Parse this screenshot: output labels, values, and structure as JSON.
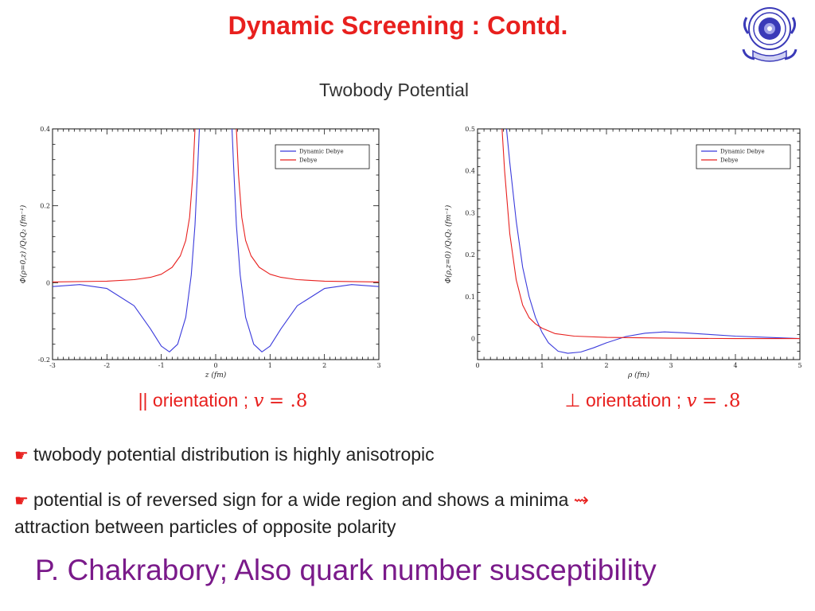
{
  "title": "Dynamic Screening : Contd.",
  "subtitle": "Twobody Potential",
  "logo": {
    "icon": "university-seal-icon",
    "color": "#3a3ab8"
  },
  "colors": {
    "title": "#e8201e",
    "dynamic": "#3b3bdc",
    "debye": "#e8201e",
    "footer": "#7a1a8a"
  },
  "chart_data": [
    {
      "type": "line",
      "ylabel": "Φ(ρ=0,z) /Q₁Q₂ (fm⁻¹)",
      "xlabel": "z (fm)",
      "xlim": [
        -3,
        3
      ],
      "ylim": [
        -0.2,
        0.4
      ],
      "xticks": [
        -3,
        -2,
        -1,
        0,
        1,
        2,
        3
      ],
      "yticks": [
        -0.2,
        0,
        0.2,
        0.4
      ],
      "ytick_labels": [
        "-0.2",
        "0",
        "0.2",
        "0.4"
      ],
      "legend_position": "top-right",
      "series": [
        {
          "name": "Dynamic Debye",
          "color": "#3b3bdc",
          "x": [
            -3,
            -2.5,
            -2,
            -1.5,
            -1.2,
            -1,
            -0.85,
            -0.7,
            -0.55,
            -0.45,
            -0.38,
            -0.33,
            -0.3
          ],
          "y": [
            -0.01,
            -0.005,
            -0.015,
            -0.06,
            -0.12,
            -0.165,
            -0.18,
            -0.16,
            -0.09,
            0.02,
            0.15,
            0.3,
            0.4
          ]
        },
        {
          "name": "Dynamic Debye",
          "color": "#3b3bdc",
          "x": [
            0.3,
            0.33,
            0.38,
            0.45,
            0.55,
            0.7,
            0.85,
            1,
            1.2,
            1.5,
            2,
            2.5,
            3
          ],
          "y": [
            0.4,
            0.3,
            0.15,
            0.02,
            -0.09,
            -0.16,
            -0.18,
            -0.165,
            -0.12,
            -0.06,
            -0.015,
            -0.005,
            -0.01
          ]
        },
        {
          "name": "Debye",
          "color": "#e8201e",
          "x": [
            -3,
            -2,
            -1.5,
            -1.2,
            -1,
            -0.8,
            -0.65,
            -0.55,
            -0.48,
            -0.42,
            -0.38
          ],
          "y": [
            0.002,
            0.004,
            0.008,
            0.014,
            0.022,
            0.04,
            0.07,
            0.11,
            0.17,
            0.28,
            0.4
          ]
        },
        {
          "name": "Debye",
          "color": "#e8201e",
          "x": [
            0.38,
            0.42,
            0.48,
            0.55,
            0.65,
            0.8,
            1,
            1.2,
            1.5,
            2,
            3
          ],
          "y": [
            0.4,
            0.28,
            0.17,
            0.11,
            0.07,
            0.04,
            0.022,
            0.014,
            0.008,
            0.004,
            0.002
          ]
        }
      ]
    },
    {
      "type": "line",
      "ylabel": "Φ(ρ,z=0) /Q₁Q₂ (fm⁻¹)",
      "xlabel": "ρ (fm)",
      "xlim": [
        0,
        5
      ],
      "ylim": [
        -0.05,
        0.5
      ],
      "xticks": [
        0,
        1,
        2,
        3,
        4,
        5
      ],
      "yticks": [
        0,
        0.1,
        0.2,
        0.3,
        0.4,
        0.5
      ],
      "ytick_labels": [
        "0",
        "0.1",
        "0.2",
        "0.3",
        "0.4",
        "0.5"
      ],
      "legend_position": "top-right",
      "series": [
        {
          "name": "Dynamic Debye",
          "color": "#3b3bdc",
          "x": [
            0.45,
            0.5,
            0.6,
            0.7,
            0.8,
            0.9,
            1,
            1.1,
            1.25,
            1.4,
            1.6,
            1.8,
            2,
            2.3,
            2.6,
            2.9,
            3.2,
            3.6,
            4,
            4.5,
            5
          ],
          "y": [
            0.5,
            0.42,
            0.28,
            0.17,
            0.1,
            0.05,
            0.015,
            -0.01,
            -0.03,
            -0.035,
            -0.032,
            -0.022,
            -0.01,
            0.005,
            0.013,
            0.016,
            0.014,
            0.01,
            0.006,
            0.003,
            0.0
          ]
        },
        {
          "name": "Debye",
          "color": "#e8201e",
          "x": [
            0.38,
            0.42,
            0.5,
            0.6,
            0.7,
            0.8,
            0.9,
            1,
            1.2,
            1.5,
            2,
            3,
            4,
            5
          ],
          "y": [
            0.5,
            0.4,
            0.25,
            0.14,
            0.08,
            0.05,
            0.035,
            0.025,
            0.012,
            0.006,
            0.003,
            0.001,
            0.0,
            0.0
          ]
        }
      ]
    }
  ],
  "captions": {
    "left": {
      "prefix": "|| orientation ;",
      "var": "v",
      "equals": "= .8"
    },
    "right": {
      "prefix": "⊥ orientation ;",
      "var": "v",
      "equals": "= .8"
    }
  },
  "bullets": [
    {
      "icon": "pointing-hand-icon",
      "text": "twobody potential distribution is highly anisotropic"
    },
    {
      "icon": "pointing-hand-icon",
      "text": "potential is of reversed sign for a wide region and shows a minima",
      "arrow": "⇝",
      "text2": "attraction between particles of opposite polarity"
    }
  ],
  "footer": "P. Chakrabory; Also quark number susceptibility"
}
